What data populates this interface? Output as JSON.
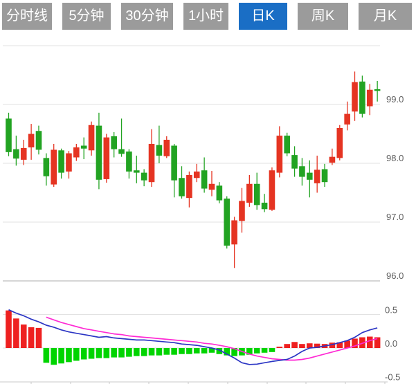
{
  "tabbar": {
    "tabs": [
      {
        "label": "分时线",
        "active": false
      },
      {
        "label": "5分钟",
        "active": false
      },
      {
        "label": "30分钟",
        "active": false
      },
      {
        "label": "1小时",
        "active": false
      },
      {
        "label": "日K",
        "active": true
      },
      {
        "label": "周K",
        "active": false
      },
      {
        "label": "月K",
        "active": false
      }
    ]
  },
  "colors": {
    "background": "#ffffff",
    "tab_bg": "#9b9b9b",
    "tab_active_bg": "#1a6ec5",
    "tab_text": "#ffffff",
    "candle_up": "#e53422",
    "candle_down": "#22a322",
    "hist_up": "#ee2020",
    "hist_down": "#00d400",
    "dif_line": "#2b35c4",
    "dea_line": "#ff2ad4",
    "gridline": "#e2e2e2",
    "axis_line": "#c9c9c9",
    "axis_label": "#5f5f5f"
  },
  "chart_data": {
    "type": "candlestick",
    "title": "",
    "convention": "chinese-kline (red = up, green = down)",
    "selected_timeframe": "日K",
    "price_panel": {
      "ylim": [
        95.9,
        100.05
      ],
      "grid": true,
      "gridlines": [
        {
          "value": 100.0,
          "label": ""
        },
        {
          "value": 99.0,
          "label": "99.0"
        },
        {
          "value": 98.0,
          "label": "98.0"
        },
        {
          "value": 97.0,
          "label": "97.0"
        },
        {
          "value": 96.0,
          "label": "96.0"
        }
      ],
      "candles_ohlc": [
        [
          98.76,
          98.86,
          98.12,
          98.19
        ],
        [
          98.24,
          98.47,
          97.96,
          98.08
        ],
        [
          98.06,
          98.4,
          97.97,
          98.26
        ],
        [
          98.27,
          98.67,
          98.06,
          98.5
        ],
        [
          98.55,
          98.64,
          98.15,
          98.23
        ],
        [
          98.09,
          98.17,
          97.62,
          97.78
        ],
        [
          97.64,
          98.33,
          97.6,
          98.23
        ],
        [
          98.22,
          98.25,
          97.74,
          97.84
        ],
        [
          97.86,
          98.21,
          97.74,
          98.17
        ],
        [
          98.1,
          98.33,
          98.04,
          98.27
        ],
        [
          98.3,
          98.44,
          98.07,
          98.25
        ],
        [
          98.22,
          98.71,
          98.13,
          98.65
        ],
        [
          98.64,
          98.86,
          97.56,
          97.72
        ],
        [
          97.73,
          98.5,
          97.67,
          98.44
        ],
        [
          98.46,
          98.53,
          98.1,
          98.24
        ],
        [
          98.24,
          98.76,
          98.11,
          98.16
        ],
        [
          98.2,
          98.24,
          97.74,
          97.86
        ],
        [
          97.88,
          98.13,
          97.66,
          97.84
        ],
        [
          97.84,
          97.9,
          97.61,
          97.71
        ],
        [
          97.68,
          98.58,
          97.6,
          98.33
        ],
        [
          98.31,
          98.64,
          98.0,
          98.13
        ],
        [
          98.12,
          98.46,
          98.09,
          98.4
        ],
        [
          98.3,
          98.33,
          97.42,
          97.71
        ],
        [
          97.75,
          97.95,
          97.4,
          97.44
        ],
        [
          97.41,
          97.86,
          97.25,
          97.8
        ],
        [
          97.75,
          97.99,
          97.68,
          97.86
        ],
        [
          97.88,
          98.1,
          97.5,
          97.57
        ],
        [
          97.55,
          97.87,
          97.44,
          97.65
        ],
        [
          97.62,
          97.68,
          97.32,
          97.37
        ],
        [
          97.4,
          97.44,
          96.55,
          96.6
        ],
        [
          96.62,
          97.09,
          96.22,
          97.03
        ],
        [
          97.02,
          97.58,
          96.82,
          97.36
        ],
        [
          97.33,
          97.8,
          97.26,
          97.65
        ],
        [
          97.65,
          97.84,
          97.21,
          97.29
        ],
        [
          97.33,
          97.48,
          97.17,
          97.22
        ],
        [
          97.21,
          97.93,
          97.19,
          97.88
        ],
        [
          97.84,
          98.63,
          97.76,
          98.47
        ],
        [
          98.47,
          98.52,
          98.12,
          98.17
        ],
        [
          98.14,
          98.29,
          97.77,
          97.91
        ],
        [
          97.95,
          98.09,
          97.62,
          97.77
        ],
        [
          97.84,
          98.05,
          97.42,
          97.72
        ],
        [
          97.66,
          98.13,
          97.5,
          97.89
        ],
        [
          97.9,
          97.99,
          97.6,
          97.68
        ],
        [
          98.01,
          98.25,
          97.97,
          98.11
        ],
        [
          98.09,
          98.65,
          98.05,
          98.6
        ],
        [
          98.66,
          99.05,
          98.56,
          98.84
        ],
        [
          98.88,
          99.56,
          98.72,
          99.38
        ],
        [
          99.39,
          99.49,
          98.78,
          98.84
        ],
        [
          98.97,
          99.35,
          98.82,
          99.25
        ],
        [
          99.26,
          99.4,
          99.05,
          99.23
        ]
      ]
    },
    "macd_panel": {
      "ylim": [
        -0.5,
        0.5
      ],
      "grid": true,
      "gridlines": [
        {
          "value": 0.5,
          "label": "0.5"
        },
        {
          "value": 0.0,
          "label": "0.0"
        },
        {
          "value": -0.5,
          "label": "-0.5"
        }
      ],
      "histogram": [
        0.56,
        0.44,
        0.35,
        0.31,
        0.3,
        -0.22,
        -0.25,
        -0.23,
        -0.21,
        -0.19,
        -0.17,
        -0.16,
        -0.15,
        -0.15,
        -0.14,
        -0.14,
        -0.13,
        -0.12,
        -0.12,
        -0.11,
        -0.11,
        -0.1,
        -0.1,
        -0.09,
        -0.09,
        -0.08,
        -0.08,
        -0.07,
        -0.09,
        -0.11,
        -0.12,
        -0.11,
        -0.1,
        -0.08,
        -0.07,
        -0.06,
        0.02,
        0.06,
        0.09,
        0.06,
        0.07,
        0.065,
        0.06,
        0.08,
        0.085,
        0.11,
        0.14,
        0.16,
        0.17,
        0.16
      ],
      "dif": [
        0.57,
        0.52,
        0.48,
        0.43,
        0.39,
        0.34,
        0.31,
        0.27,
        0.24,
        0.22,
        0.2,
        0.18,
        0.16,
        0.17,
        0.15,
        0.14,
        0.13,
        0.12,
        0.12,
        0.11,
        0.1,
        0.09,
        0.08,
        0.06,
        0.05,
        0.04,
        0.02,
        0.0,
        -0.03,
        -0.09,
        -0.15,
        -0.22,
        -0.245,
        -0.24,
        -0.22,
        -0.2,
        -0.185,
        -0.17,
        -0.12,
        -0.05,
        0.0,
        0.01,
        0.03,
        0.05,
        0.08,
        0.11,
        0.16,
        0.23,
        0.27,
        0.3
      ],
      "dea": [
        null,
        null,
        null,
        null,
        null,
        0.46,
        0.42,
        0.38,
        0.35,
        0.32,
        0.29,
        0.27,
        0.25,
        0.23,
        0.21,
        0.2,
        0.18,
        0.17,
        0.16,
        0.15,
        0.14,
        0.13,
        0.12,
        0.11,
        0.1,
        0.09,
        0.07,
        0.06,
        0.04,
        0.02,
        -0.01,
        -0.05,
        -0.09,
        -0.12,
        -0.14,
        -0.16,
        -0.17,
        -0.18,
        -0.18,
        -0.17,
        -0.15,
        -0.12,
        -0.09,
        -0.06,
        -0.03,
        0.0,
        0.03,
        0.07,
        0.11,
        0.14
      ]
    },
    "x_axis": {
      "labels": [],
      "tick_xs": [
        45,
        102,
        158,
        215,
        272,
        329,
        386,
        442,
        499,
        556
      ]
    }
  }
}
